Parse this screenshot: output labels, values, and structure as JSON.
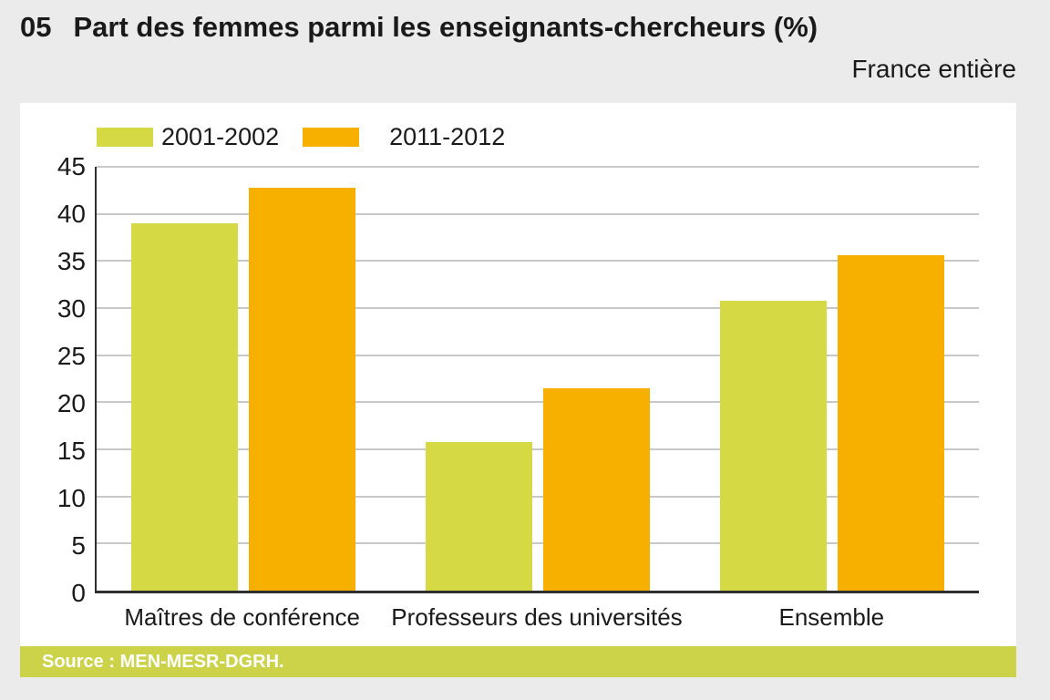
{
  "header": {
    "number": "05",
    "title": "Part des femmes parmi les enseignants-chercheurs (%)",
    "region_label": "France entière"
  },
  "chart_data": {
    "type": "bar",
    "title": "Part des femmes parmi les enseignants-chercheurs (%)",
    "subtitle": "France entière",
    "categories": [
      "Maîtres de conférence",
      "Professeurs des universités",
      "Ensemble"
    ],
    "series": [
      {
        "name": "2001-2002",
        "color": "#d4d944",
        "values": [
          39.0,
          15.8,
          30.8
        ]
      },
      {
        "name": "2011-2012",
        "color": "#f8b000",
        "values": [
          42.8,
          21.5,
          35.6
        ]
      }
    ],
    "ylabel": "",
    "xlabel": "",
    "ylim": [
      0,
      45
    ],
    "yticks": [
      0,
      5,
      10,
      15,
      20,
      25,
      30,
      35,
      40,
      45
    ],
    "grid": true,
    "gridline_color": "#c8c8c8",
    "legend_position": "top-left"
  },
  "source_bar": {
    "text": "Source : MEN-MESR-DGRH.",
    "background": "#ccd348",
    "text_color": "#ffffff"
  }
}
